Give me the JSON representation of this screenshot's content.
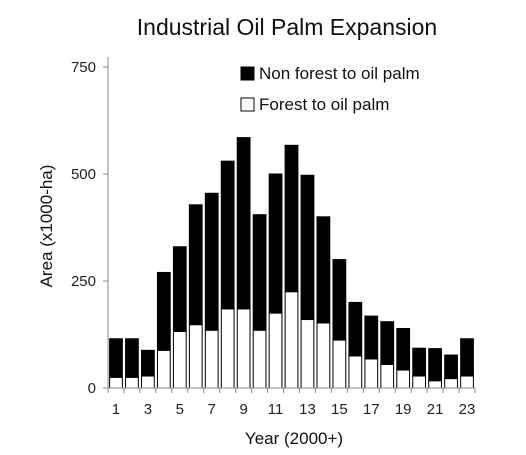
{
  "chart_data": {
    "type": "bar",
    "stacked": true,
    "title": "Industrial Oil Palm Expansion",
    "xlabel": "Year (2000+)",
    "ylabel": "Area (x1000-ha)",
    "ylim": [
      0,
      750
    ],
    "yticks": [
      0,
      250,
      500,
      750
    ],
    "xtick_labels": [
      "1",
      "3",
      "5",
      "7",
      "9",
      "11",
      "13",
      "15",
      "17",
      "19",
      "21",
      "23"
    ],
    "categories": [
      1,
      2,
      3,
      4,
      5,
      6,
      7,
      8,
      9,
      10,
      11,
      12,
      13,
      14,
      15,
      16,
      17,
      18,
      19,
      20,
      21,
      22,
      23
    ],
    "series": [
      {
        "name": "Forest to oil palm",
        "color": "#ffffff",
        "values": [
          25,
          25,
          28,
          88,
          132,
          148,
          135,
          185,
          185,
          135,
          175,
          225,
          160,
          152,
          112,
          75,
          68,
          55,
          42,
          28,
          17,
          22,
          28
        ]
      },
      {
        "name": "Non forest to oil palm",
        "color": "#000000",
        "values": [
          90,
          90,
          60,
          182,
          198,
          280,
          320,
          345,
          400,
          270,
          325,
          342,
          337,
          248,
          188,
          125,
          100,
          100,
          97,
          65,
          75,
          55,
          87
        ]
      }
    ],
    "legend": {
      "position": "top-right",
      "entries": [
        "Non forest to oil palm",
        "Forest to oil palm"
      ]
    },
    "grid": false
  }
}
